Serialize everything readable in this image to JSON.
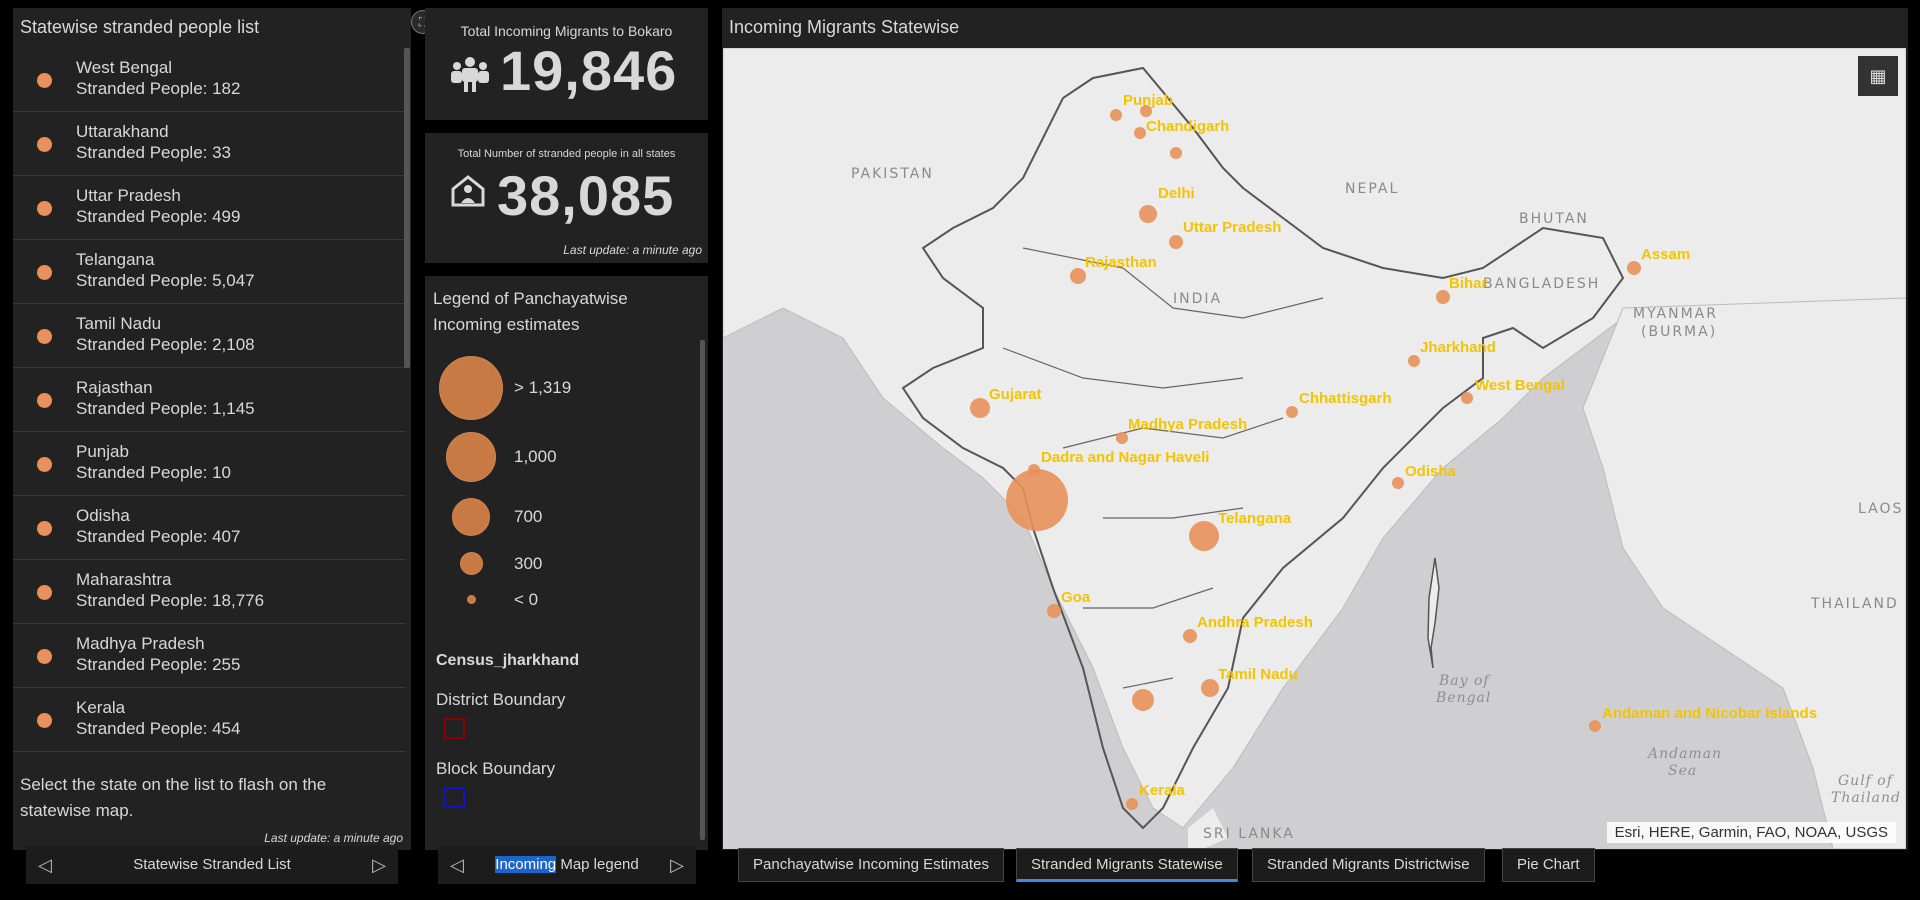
{
  "list": {
    "title": "Statewise stranded people list",
    "items": [
      {
        "name": "West Bengal",
        "count": "Stranded People: 182"
      },
      {
        "name": "Uttarakhand",
        "count": "Stranded People: 33"
      },
      {
        "name": "Uttar Pradesh",
        "count": "Stranded People: 499"
      },
      {
        "name": "Telangana",
        "count": "Stranded People: 5,047"
      },
      {
        "name": "Tamil Nadu",
        "count": "Stranded People: 2,108"
      },
      {
        "name": "Rajasthan",
        "count": "Stranded People: 1,145"
      },
      {
        "name": "Punjab",
        "count": "Stranded People: 10"
      },
      {
        "name": "Odisha",
        "count": "Stranded People: 407"
      },
      {
        "name": "Maharashtra",
        "count": "Stranded People: 18,776"
      },
      {
        "name": "Madhya Pradesh",
        "count": "Stranded People: 255"
      },
      {
        "name": "Kerala",
        "count": "Stranded People: 454"
      }
    ],
    "footer_text": "Select the state on the list to flash on the statewise map.",
    "last_update": "Last update: a minute ago",
    "pager_label": "Statewise Stranded List",
    "dot_color": "#e8915a"
  },
  "indicator1": {
    "title": "Total Incoming Migrants to Bokaro",
    "value": "19,846",
    "icon": "people-icon"
  },
  "indicator2": {
    "title": "Total Number of stranded people in all states",
    "value": "38,085",
    "icon": "home-person-icon",
    "last_update": "Last update: a minute ago"
  },
  "legend": {
    "title": "Legend of Panchayatwise Incoming estimates",
    "sizes": [
      {
        "label": "> 1,319"
      },
      {
        "label": "1,000"
      },
      {
        "label": "700"
      },
      {
        "label": "300"
      },
      {
        "label": "< 0"
      }
    ],
    "census_title": "Census_jharkhand",
    "district_label": "District Boundary",
    "block_label": "Block Boundary",
    "pager_highlight": "Incoming",
    "pager_rest": " Map legend"
  },
  "map": {
    "title": "Incoming Migrants Statewise",
    "attribution": "Esri, HERE, Garmin, FAO, NOAA, USGS",
    "countries": [
      "PAKISTAN",
      "NEPAL",
      "BHUTAN",
      "BANGLADESH",
      "MYANMAR",
      "(BURMA)",
      "INDIA",
      "LAOS",
      "THAILAND",
      "SRI LANKA"
    ],
    "seas": [
      "Bay of",
      "Bengal",
      "Andaman",
      "Sea",
      "Gulf of",
      "Thailand"
    ],
    "places": [
      "Punjab",
      "Chandigarh",
      "Delhi",
      "Uttar Pradesh",
      "Rajasthan",
      "Assam",
      "Bihar",
      "Jharkhand",
      "West Bengal",
      "Gujarat",
      "Madhya Pradesh",
      "Chhattisgarh",
      "Dadra and Nagar Haveli",
      "Odisha",
      "Telangana",
      "Goa",
      "Andhra Pradesh",
      "Tamil Nadu",
      "Andaman and Nicobar Islands",
      "Kerala"
    ]
  },
  "tabs": [
    {
      "label": "Panchayatwise Incoming Estimates"
    },
    {
      "label": "Stranded Migrants Statewise"
    },
    {
      "label": "Stranded Migrants Districtwise"
    },
    {
      "label": "Pie Chart"
    }
  ],
  "colors": {
    "accent": "#3a8ee6",
    "bubble": "#e8915a",
    "label": "#f5c400"
  }
}
